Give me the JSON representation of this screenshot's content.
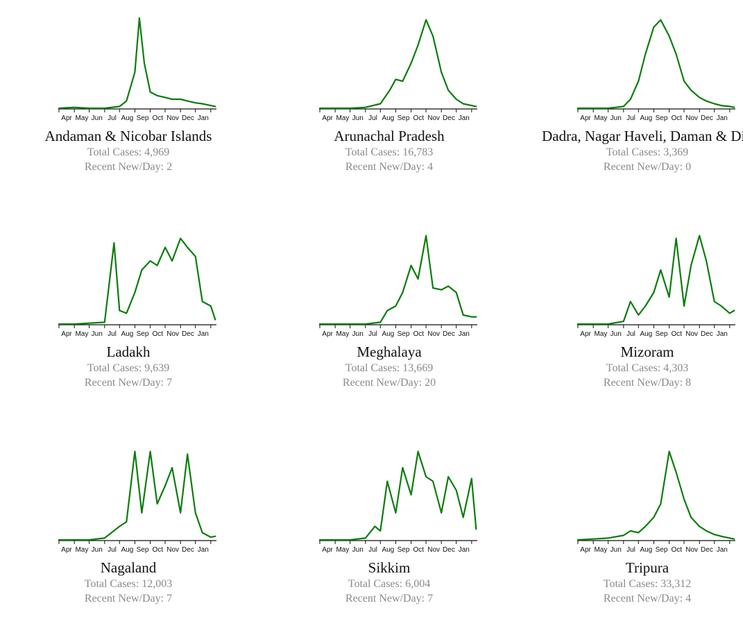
{
  "labels": {
    "total_cases": "Total Cases:",
    "recent_new_per_day": "Recent New/Day:"
  },
  "colors": {
    "line": "#0a7d0a",
    "axis": "#111111"
  },
  "panels": [
    {
      "name": "Andaman & Nicobar Islands",
      "total_cases": "4,969",
      "recent_new_per_day": "2"
    },
    {
      "name": "Arunachal Pradesh",
      "total_cases": "16,783",
      "recent_new_per_day": "4"
    },
    {
      "name": "Dadra, Nagar Haveli, Daman & Diu",
      "total_cases": "3,369",
      "recent_new_per_day": "0"
    },
    {
      "name": "Ladakh",
      "total_cases": "9,639",
      "recent_new_per_day": "7"
    },
    {
      "name": "Meghalaya",
      "total_cases": "13,669",
      "recent_new_per_day": "20"
    },
    {
      "name": "Mizoram",
      "total_cases": "4,303",
      "recent_new_per_day": "8"
    },
    {
      "name": "Nagaland",
      "total_cases": "12,003",
      "recent_new_per_day": "7"
    },
    {
      "name": "Sikkim",
      "total_cases": "6,004",
      "recent_new_per_day": "7"
    },
    {
      "name": "Tripura",
      "total_cases": "33,312",
      "recent_new_per_day": "4"
    }
  ],
  "chart_data": [
    {
      "type": "line",
      "title": "Andaman & Nicobar Islands",
      "x_tick_labels": [
        "Apr",
        "May",
        "Jun",
        "Jul",
        "Aug",
        "Sep",
        "Oct",
        "Nov",
        "Dec",
        "Jan"
      ],
      "x": [
        "2020-03",
        "2020-04",
        "2020-05",
        "2020-06",
        "2020-07",
        "2020-07-15",
        "2020-08",
        "2020-08-10",
        "2020-08-20",
        "2020-09",
        "2020-09-15",
        "2020-10",
        "2020-10-15",
        "2020-11",
        "2020-11-15",
        "2020-12",
        "2020-12-15",
        "2021-01",
        "2021-01-10"
      ],
      "series": [
        {
          "values": [
            0,
            1,
            0,
            0,
            2,
            8,
            40,
            100,
            50,
            18,
            14,
            12,
            10,
            10,
            8,
            6,
            5,
            3,
            2
          ]
        }
      ]
    },
    {
      "type": "line",
      "title": "Arunachal Pradesh",
      "x_tick_labels": [
        "Apr",
        "May",
        "Jun",
        "Jul",
        "Aug",
        "Sep",
        "Oct",
        "Nov",
        "Dec",
        "Jan"
      ],
      "x": [
        "2020-03",
        "2020-04",
        "2020-05",
        "2020-06",
        "2020-07",
        "2020-07-20",
        "2020-08",
        "2020-08-15",
        "2020-09",
        "2020-09-15",
        "2020-10",
        "2020-10-15",
        "2020-11",
        "2020-11-15",
        "2020-12",
        "2020-12-15",
        "2021-01",
        "2021-01-10"
      ],
      "series": [
        {
          "values": [
            0,
            0,
            0,
            1,
            5,
            20,
            32,
            30,
            50,
            70,
            98,
            80,
            40,
            20,
            10,
            5,
            3,
            2
          ]
        }
      ]
    },
    {
      "type": "line",
      "title": "Dadra, Nagar Haveli, Daman & Diu",
      "x_tick_labels": [
        "Apr",
        "May",
        "Jun",
        "Jul",
        "Aug",
        "Sep",
        "Oct",
        "Nov",
        "Dec",
        "Jan"
      ],
      "x": [
        "2020-03",
        "2020-04",
        "2020-05",
        "2020-06",
        "2020-06-15",
        "2020-07",
        "2020-07-15",
        "2020-08",
        "2020-08-15",
        "2020-09",
        "2020-09-15",
        "2020-10",
        "2020-10-15",
        "2020-11",
        "2020-11-15",
        "2020-12",
        "2020-12-15",
        "2021-01",
        "2021-01-10"
      ],
      "series": [
        {
          "values": [
            0,
            0,
            0,
            2,
            10,
            30,
            60,
            90,
            98,
            80,
            60,
            30,
            20,
            12,
            8,
            5,
            3,
            2,
            1
          ]
        }
      ]
    },
    {
      "type": "line",
      "title": "Ladakh",
      "x_tick_labels": [
        "Apr",
        "May",
        "Jun",
        "Jul",
        "Aug",
        "Sep",
        "Oct",
        "Nov",
        "Dec",
        "Jan"
      ],
      "x": [
        "2020-03",
        "2020-04",
        "2020-05",
        "2020-06",
        "2020-06-20",
        "2020-07",
        "2020-07-15",
        "2020-08",
        "2020-08-15",
        "2020-09",
        "2020-09-15",
        "2020-10",
        "2020-10-15",
        "2020-11",
        "2020-11-15",
        "2020-12",
        "2020-12-15",
        "2021-01",
        "2021-01-10"
      ],
      "series": [
        {
          "values": [
            0,
            0,
            1,
            2,
            90,
            15,
            12,
            35,
            60,
            70,
            65,
            85,
            70,
            95,
            85,
            75,
            25,
            20,
            5
          ]
        }
      ]
    },
    {
      "type": "line",
      "title": "Meghalaya",
      "x_tick_labels": [
        "Apr",
        "May",
        "Jun",
        "Jul",
        "Aug",
        "Sep",
        "Oct",
        "Nov",
        "Dec",
        "Jan"
      ],
      "x": [
        "2020-03",
        "2020-04",
        "2020-05",
        "2020-06",
        "2020-07",
        "2020-07-15",
        "2020-08",
        "2020-08-15",
        "2020-09",
        "2020-09-15",
        "2020-10",
        "2020-10-15",
        "2020-11",
        "2020-11-15",
        "2020-12",
        "2020-12-15",
        "2021-01",
        "2021-01-10"
      ],
      "series": [
        {
          "values": [
            0,
            0,
            0,
            0,
            2,
            15,
            20,
            35,
            65,
            50,
            98,
            40,
            38,
            42,
            35,
            10,
            8,
            8
          ]
        }
      ]
    },
    {
      "type": "line",
      "title": "Mizoram",
      "x_tick_labels": [
        "Apr",
        "May",
        "Jun",
        "Jul",
        "Aug",
        "Sep",
        "Oct",
        "Nov",
        "Dec",
        "Jan"
      ],
      "x": [
        "2020-03",
        "2020-04",
        "2020-05",
        "2020-06",
        "2020-06-15",
        "2020-07",
        "2020-07-15",
        "2020-08",
        "2020-08-15",
        "2020-09",
        "2020-09-15",
        "2020-10",
        "2020-10-15",
        "2020-11",
        "2020-11-15",
        "2020-12",
        "2020-12-15",
        "2021-01",
        "2021-01-10"
      ],
      "series": [
        {
          "values": [
            0,
            0,
            0,
            3,
            25,
            10,
            20,
            35,
            60,
            30,
            95,
            20,
            65,
            98,
            70,
            25,
            20,
            12,
            15
          ]
        }
      ]
    },
    {
      "type": "line",
      "title": "Nagaland",
      "x_tick_labels": [
        "Apr",
        "May",
        "Jun",
        "Jul",
        "Aug",
        "Sep",
        "Oct",
        "Nov",
        "Dec",
        "Jan"
      ],
      "x": [
        "2020-03",
        "2020-04",
        "2020-05",
        "2020-06",
        "2020-07",
        "2020-07-15",
        "2020-08",
        "2020-08-15",
        "2020-09",
        "2020-09-15",
        "2020-10",
        "2020-10-15",
        "2020-11",
        "2020-11-15",
        "2020-12",
        "2020-12-15",
        "2021-01",
        "2021-01-10"
      ],
      "series": [
        {
          "values": [
            0,
            0,
            0,
            2,
            15,
            20,
            98,
            30,
            98,
            40,
            60,
            80,
            30,
            95,
            30,
            8,
            3,
            4
          ]
        }
      ]
    },
    {
      "type": "line",
      "title": "Sikkim",
      "x_tick_labels": [
        "Apr",
        "May",
        "Jun",
        "Jul",
        "Aug",
        "Sep",
        "Oct",
        "Nov",
        "Dec",
        "Jan"
      ],
      "x": [
        "2020-03",
        "2020-04",
        "2020-05",
        "2020-06",
        "2020-06-20",
        "2020-07",
        "2020-07-15",
        "2020-08",
        "2020-08-15",
        "2020-09",
        "2020-09-15",
        "2020-10",
        "2020-10-15",
        "2020-11",
        "2020-11-15",
        "2020-12",
        "2020-12-15",
        "2021-01",
        "2021-01-10"
      ],
      "series": [
        {
          "values": [
            0,
            0,
            0,
            2,
            15,
            10,
            65,
            30,
            80,
            50,
            98,
            70,
            65,
            30,
            70,
            55,
            25,
            68,
            12
          ]
        }
      ]
    },
    {
      "type": "line",
      "title": "Tripura",
      "x_tick_labels": [
        "Apr",
        "May",
        "Jun",
        "Jul",
        "Aug",
        "Sep",
        "Oct",
        "Nov",
        "Dec",
        "Jan"
      ],
      "x": [
        "2020-03",
        "2020-04",
        "2020-05",
        "2020-06",
        "2020-06-15",
        "2020-07",
        "2020-07-15",
        "2020-08",
        "2020-08-15",
        "2020-09",
        "2020-09-15",
        "2020-10",
        "2020-10-15",
        "2020-11",
        "2020-11-15",
        "2020-12",
        "2020-12-15",
        "2021-01",
        "2021-01-10"
      ],
      "series": [
        {
          "values": [
            0,
            1,
            2,
            5,
            10,
            8,
            15,
            25,
            40,
            98,
            75,
            45,
            25,
            15,
            10,
            6,
            4,
            2,
            1
          ]
        }
      ]
    }
  ]
}
